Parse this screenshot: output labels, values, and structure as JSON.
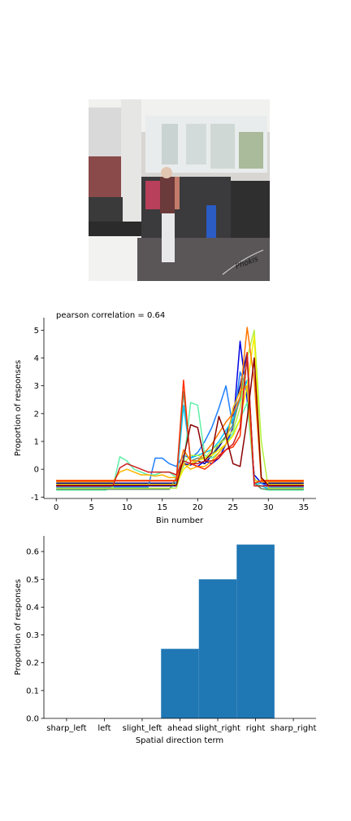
{
  "photo": {
    "icon": "store-interior-photo",
    "signature": "Phokis"
  },
  "chart_data": [
    {
      "type": "line",
      "title": "pearson correlation = 0.64",
      "xlabel": "Bin number",
      "ylabel": "Proportion of responses",
      "xlim": [
        -1.75,
        36.75
      ],
      "ylim": [
        -1.05,
        5.45
      ],
      "xticks": [
        0,
        5,
        10,
        15,
        20,
        25,
        30,
        35
      ],
      "yticks": [
        -1,
        0,
        1,
        2,
        3,
        4,
        5
      ],
      "grid": false,
      "x": [
        0,
        1,
        2,
        3,
        4,
        5,
        6,
        7,
        8,
        9,
        10,
        11,
        12,
        13,
        14,
        15,
        16,
        17,
        18,
        19,
        20,
        21,
        22,
        23,
        24,
        25,
        26,
        27,
        28,
        29,
        30,
        31,
        32,
        33,
        34,
        35
      ],
      "series": [
        {
          "color": "#00008b",
          "values": [
            -0.5,
            -0.5,
            -0.5,
            -0.5,
            -0.5,
            -0.5,
            -0.5,
            -0.5,
            -0.5,
            -0.5,
            -0.5,
            -0.5,
            -0.5,
            -0.5,
            -0.5,
            -0.5,
            -0.5,
            -0.5,
            0.2,
            0.15,
            0.3,
            0.2,
            0.5,
            0.8,
            1.2,
            2.0,
            3.0,
            4.2,
            -0.5,
            -0.5,
            -0.5,
            -0.5,
            -0.5,
            -0.5,
            -0.5,
            -0.5
          ]
        },
        {
          "color": "#0000e0",
          "values": [
            -0.6,
            -0.6,
            -0.6,
            -0.6,
            -0.6,
            -0.6,
            -0.6,
            -0.6,
            -0.6,
            -0.6,
            -0.6,
            -0.6,
            -0.6,
            -0.6,
            -0.6,
            -0.6,
            -0.6,
            -0.6,
            0.3,
            0.2,
            0.1,
            0.3,
            0.2,
            0.4,
            0.9,
            1.5,
            4.6,
            2.5,
            -0.2,
            -0.5,
            -0.6,
            -0.6,
            -0.6,
            -0.6,
            -0.6,
            -0.6
          ]
        },
        {
          "color": "#1e7fff",
          "values": [
            -0.65,
            -0.65,
            -0.65,
            -0.65,
            -0.65,
            -0.65,
            -0.65,
            -0.65,
            -0.65,
            -0.65,
            -0.65,
            -0.65,
            -0.65,
            -0.65,
            0.4,
            0.4,
            0.2,
            0.1,
            0.5,
            0.4,
            0.6,
            1.0,
            1.5,
            2.2,
            3.0,
            1.5,
            3.5,
            2.8,
            -0.5,
            -0.5,
            -0.65,
            -0.65,
            -0.65,
            -0.65,
            -0.65,
            -0.65
          ]
        },
        {
          "color": "#00c8ff",
          "values": [
            -0.7,
            -0.7,
            -0.7,
            -0.7,
            -0.7,
            -0.7,
            -0.7,
            -0.7,
            -0.7,
            -0.7,
            -0.7,
            -0.7,
            -0.7,
            -0.7,
            -0.7,
            -0.7,
            -0.7,
            -0.5,
            2.3,
            0.4,
            0.5,
            0.6,
            0.7,
            1.0,
            1.4,
            1.8,
            2.5,
            3.2,
            -0.5,
            -0.6,
            -0.7,
            -0.7,
            -0.7,
            -0.7,
            -0.7,
            -0.7
          ]
        },
        {
          "color": "#5ff0a8",
          "values": [
            -0.75,
            -0.75,
            -0.75,
            -0.75,
            -0.75,
            -0.75,
            -0.75,
            -0.75,
            -0.65,
            0.45,
            0.3,
            0.0,
            -0.1,
            -0.2,
            -0.2,
            -0.1,
            -0.1,
            -0.3,
            0.1,
            2.4,
            2.3,
            0.5,
            0.4,
            0.6,
            0.9,
            1.3,
            1.8,
            2.4,
            -0.3,
            -0.7,
            -0.75,
            -0.75,
            -0.75,
            -0.75,
            -0.75,
            -0.75
          ]
        },
        {
          "color": "#6a8c6a",
          "values": [
            -0.72,
            -0.72,
            -0.72,
            -0.72,
            -0.72,
            -0.72,
            -0.72,
            -0.72,
            -0.72,
            -0.72,
            -0.72,
            -0.72,
            -0.72,
            -0.72,
            -0.72,
            -0.72,
            -0.72,
            -0.3,
            2.8,
            0.3,
            0.4,
            0.4,
            0.5,
            0.9,
            1.2,
            1.6,
            2.6,
            3.9,
            -0.5,
            -0.7,
            -0.72,
            -0.72,
            -0.72,
            -0.72,
            -0.72,
            -0.72
          ]
        },
        {
          "color": "#b4f040",
          "values": [
            -0.68,
            -0.68,
            -0.68,
            -0.68,
            -0.68,
            -0.68,
            -0.68,
            -0.68,
            -0.68,
            -0.68,
            -0.68,
            -0.68,
            -0.68,
            -0.68,
            -0.68,
            -0.68,
            -0.68,
            -0.68,
            0.2,
            0.5,
            0.5,
            0.4,
            0.7,
            0.9,
            1.1,
            1.4,
            2.2,
            4.0,
            5.0,
            1.0,
            -0.68,
            -0.68,
            -0.68,
            -0.68,
            -0.68,
            -0.68
          ]
        },
        {
          "color": "#f0f000",
          "values": [
            -0.55,
            -0.55,
            -0.55,
            -0.55,
            -0.55,
            -0.55,
            -0.55,
            -0.55,
            -0.55,
            -0.55,
            -0.55,
            -0.55,
            -0.55,
            -0.55,
            -0.55,
            -0.55,
            -0.55,
            -0.55,
            0.0,
            0.2,
            0.3,
            0.4,
            0.5,
            0.7,
            0.9,
            1.2,
            1.8,
            3.0,
            4.8,
            -0.3,
            -0.55,
            -0.55,
            -0.55,
            -0.55,
            -0.55,
            -0.55
          ]
        },
        {
          "color": "#ffb400",
          "values": [
            -0.45,
            -0.45,
            -0.45,
            -0.45,
            -0.45,
            -0.45,
            -0.45,
            -0.45,
            -0.45,
            -0.1,
            0.0,
            -0.1,
            -0.2,
            -0.2,
            -0.25,
            -0.2,
            -0.3,
            -0.3,
            0.2,
            0.0,
            0.1,
            0.1,
            0.3,
            0.6,
            0.9,
            2.2,
            2.8,
            3.0,
            -0.4,
            -0.45,
            -0.45,
            -0.45,
            -0.45,
            -0.45,
            -0.45,
            -0.45
          ]
        },
        {
          "color": "#ff7800",
          "values": [
            -0.4,
            -0.4,
            -0.4,
            -0.4,
            -0.4,
            -0.4,
            -0.4,
            -0.4,
            -0.4,
            -0.4,
            -0.4,
            -0.4,
            -0.4,
            -0.4,
            -0.4,
            -0.4,
            -0.4,
            -0.4,
            0.7,
            0.3,
            0.3,
            0.6,
            0.9,
            1.3,
            1.7,
            2.0,
            2.6,
            5.1,
            3.2,
            -0.4,
            -0.4,
            -0.4,
            -0.4,
            -0.4,
            -0.4,
            -0.4
          ]
        },
        {
          "color": "#ff3000",
          "values": [
            -0.42,
            -0.42,
            -0.42,
            -0.42,
            -0.42,
            -0.42,
            -0.42,
            -0.42,
            -0.42,
            -0.42,
            -0.42,
            -0.42,
            -0.42,
            -0.42,
            -0.42,
            -0.42,
            -0.42,
            -0.42,
            3.2,
            0.2,
            0.1,
            0.0,
            0.2,
            0.5,
            0.7,
            0.8,
            1.2,
            4.2,
            -0.5,
            -0.42,
            -0.42,
            -0.42,
            -0.42,
            -0.42,
            -0.42,
            -0.42
          ]
        },
        {
          "color": "#d21e1e",
          "values": [
            -0.6,
            -0.6,
            -0.6,
            -0.6,
            -0.6,
            -0.6,
            -0.6,
            -0.6,
            -0.6,
            0.05,
            0.2,
            0.1,
            0.0,
            -0.1,
            -0.1,
            -0.1,
            -0.1,
            -0.2,
            0.3,
            0.2,
            0.2,
            0.3,
            0.3,
            0.4,
            0.7,
            0.9,
            1.5,
            4.1,
            -0.6,
            -0.6,
            -0.6,
            -0.6,
            -0.6,
            -0.6,
            -0.6,
            -0.6
          ]
        },
        {
          "color": "#8b0000",
          "values": [
            -0.58,
            -0.58,
            -0.58,
            -0.58,
            -0.58,
            -0.58,
            -0.58,
            -0.58,
            -0.58,
            -0.58,
            -0.58,
            -0.58,
            -0.58,
            -0.58,
            -0.58,
            -0.58,
            -0.58,
            -0.58,
            0.4,
            1.6,
            1.5,
            0.3,
            0.6,
            1.9,
            1.2,
            0.2,
            0.1,
            1.8,
            4.0,
            -0.3,
            -0.58,
            -0.58,
            -0.58,
            -0.58,
            -0.58,
            -0.58
          ]
        }
      ]
    },
    {
      "type": "bar",
      "xlabel": "Spatial direction term",
      "ylabel": "Proportion of responses",
      "categories": [
        "sharp_left",
        "left",
        "slight_left",
        "ahead",
        "slight_right",
        "right",
        "sharp_right"
      ],
      "values": [
        0.0,
        0.0,
        0.0,
        0.25,
        0.5,
        0.625,
        0.0
      ],
      "ylim": [
        0,
        0.656
      ],
      "yticks": [
        "0.0",
        "0.1",
        "0.2",
        "0.3",
        "0.4",
        "0.5",
        "0.6"
      ],
      "bar_color": "#1f77b4",
      "grid": false
    }
  ]
}
